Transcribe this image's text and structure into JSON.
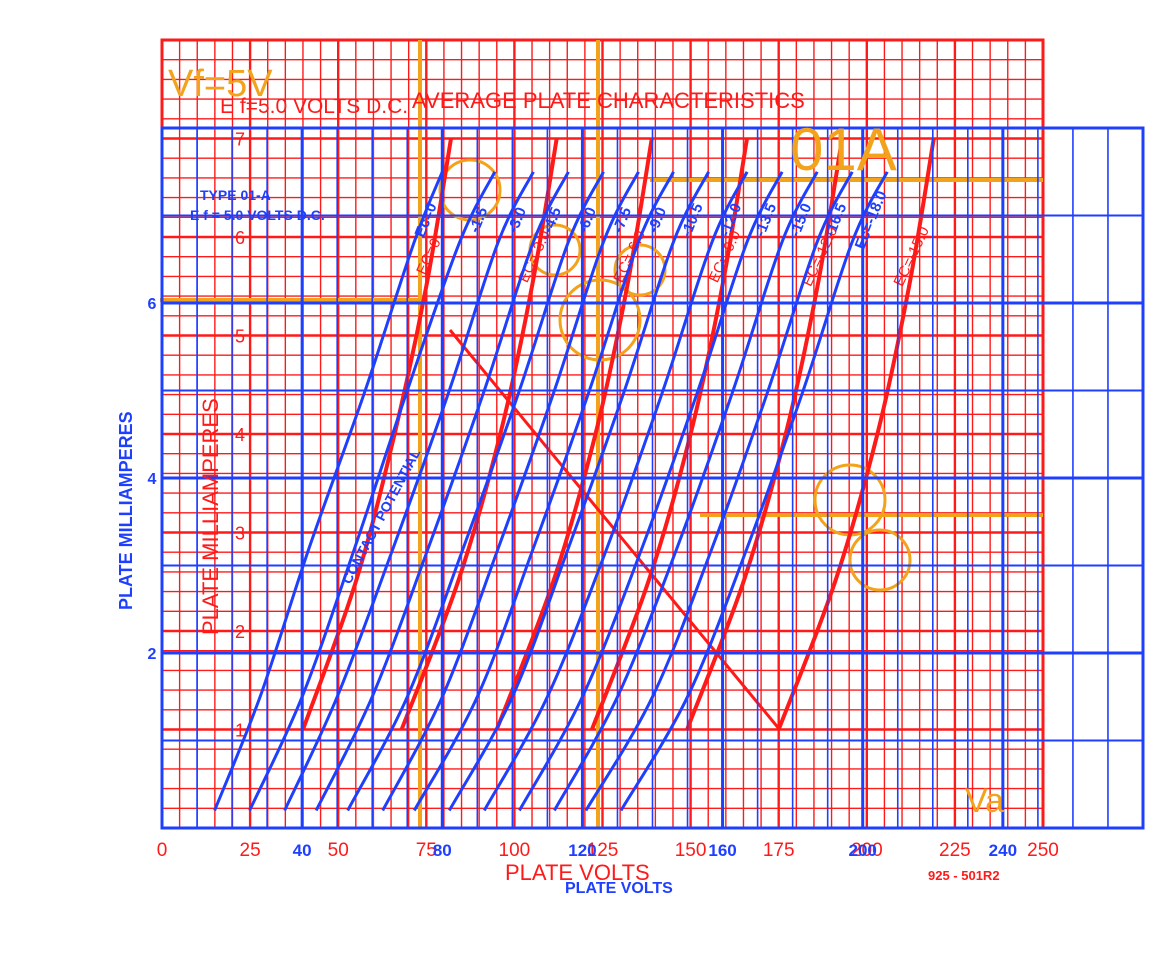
{
  "colors": {
    "background": "#ffffff",
    "red_overlay": "#ff1a1a",
    "blue_overlay": "#1f3fff",
    "orange_overlay": "#f2a31b"
  },
  "red_chart": {
    "title": "AVERAGE  PLATE  CHARACTERISTICS",
    "filament": "E f=5.0  VOLTS D.C.",
    "xlabel": "PLATE  VOLTS",
    "ylabel": "PLATE  MILLIAMPERES",
    "x_ticks": [
      "0",
      "25",
      "50",
      "75",
      "100",
      "125",
      "150",
      "175",
      "200",
      "225",
      "250"
    ],
    "y_ticks": [
      "1",
      "2",
      "3",
      "4",
      "5",
      "6",
      "7"
    ],
    "figure_number": "925 - 501R2"
  },
  "blue_chart": {
    "type_label": "TYPE 01-A",
    "filament": "E f = 5.0 VOLTS D.C.",
    "xlabel": "PLATE  VOLTS",
    "ylabel": "PLATE    MILLIAMPERES",
    "x_ticks": [
      "0",
      "40",
      "80",
      "120",
      "160",
      "200",
      "240"
    ],
    "y_ticks": [
      "2",
      "4",
      "6"
    ],
    "contact_potential": "CONTACT POTENTIAL"
  },
  "orange_marks": {
    "corner_top_left": "Vf=5V",
    "tube_type": "01A",
    "corner_bottom_right": "Va"
  },
  "chart_data": [
    {
      "type": "line",
      "name": "blue-plate-characteristics",
      "xlabel": "PLATE  VOLTS",
      "ylabel": "PLATE    MILLIAMPERES",
      "xlim": [
        0,
        280
      ],
      "ylim": [
        0,
        8
      ],
      "x_major_ticks": [
        0,
        40,
        80,
        120,
        160,
        200,
        240
      ],
      "y_major_ticks": [
        2,
        4,
        6
      ],
      "grid": true,
      "series": [
        {
          "name": "Ec=0",
          "x": [
            15,
            28,
            42,
            58,
            72,
            80
          ],
          "y": [
            0.2,
            1.5,
            3.2,
            5.0,
            6.7,
            7.5
          ]
        },
        {
          "name": "-1.5",
          "x": [
            25,
            40,
            55,
            70,
            85,
            95
          ],
          "y": [
            0.2,
            1.5,
            3.2,
            5.0,
            6.7,
            7.5
          ]
        },
        {
          "name": "-3.0",
          "x": [
            35,
            50,
            66,
            82,
            96,
            106
          ],
          "y": [
            0.2,
            1.5,
            3.2,
            5.0,
            6.7,
            7.5
          ]
        },
        {
          "name": "-4.5",
          "x": [
            44,
            60,
            76,
            92,
            106,
            116
          ],
          "y": [
            0.2,
            1.5,
            3.2,
            5.0,
            6.7,
            7.5
          ]
        },
        {
          "name": "-6.0",
          "x": [
            53,
            70,
            86,
            102,
            116,
            126
          ],
          "y": [
            0.2,
            1.5,
            3.2,
            5.0,
            6.7,
            7.5
          ]
        },
        {
          "name": "-7.5",
          "x": [
            63,
            80,
            96,
            112,
            126,
            136
          ],
          "y": [
            0.2,
            1.5,
            3.2,
            5.0,
            6.7,
            7.5
          ]
        },
        {
          "name": "-9.0",
          "x": [
            72,
            90,
            106,
            122,
            136,
            146
          ],
          "y": [
            0.2,
            1.5,
            3.2,
            5.0,
            6.7,
            7.5
          ]
        },
        {
          "name": "-10.5",
          "x": [
            82,
            100,
            116,
            132,
            146,
            156
          ],
          "y": [
            0.2,
            1.5,
            3.2,
            5.0,
            6.7,
            7.5
          ]
        },
        {
          "name": "-12.0",
          "x": [
            92,
            110,
            127,
            143,
            157,
            167
          ],
          "y": [
            0.2,
            1.5,
            3.2,
            5.0,
            6.7,
            7.5
          ]
        },
        {
          "name": "-13.5",
          "x": [
            102,
            120,
            137,
            153,
            167,
            177
          ],
          "y": [
            0.2,
            1.5,
            3.2,
            5.0,
            6.7,
            7.5
          ]
        },
        {
          "name": "-15.0",
          "x": [
            112,
            130,
            147,
            163,
            177,
            187
          ],
          "y": [
            0.2,
            1.5,
            3.2,
            5.0,
            6.7,
            7.5
          ]
        },
        {
          "name": "-16.5",
          "x": [
            121,
            140,
            157,
            173,
            187,
            197
          ],
          "y": [
            0.2,
            1.5,
            3.2,
            5.0,
            6.7,
            7.5
          ]
        },
        {
          "name": "Ec=-18.0",
          "x": [
            131,
            150,
            167,
            183,
            197,
            207
          ],
          "y": [
            0.2,
            1.5,
            3.2,
            5.0,
            6.7,
            7.5
          ]
        }
      ]
    },
    {
      "type": "line",
      "name": "red-plate-characteristics",
      "xlabel": "PLATE  VOLTS",
      "ylabel": "PLATE  MILLIAMPERES",
      "xlim": [
        0,
        250
      ],
      "ylim": [
        0,
        8
      ],
      "x_major_ticks": [
        0,
        25,
        50,
        75,
        100,
        125,
        150,
        175,
        200,
        225,
        250
      ],
      "y_major_ticks": [
        1,
        2,
        3,
        4,
        5,
        6,
        7
      ],
      "grid": true,
      "series": [
        {
          "name": "EC=0",
          "x": [
            40,
            55,
            66,
            75,
            82
          ],
          "y": [
            1.0,
            2.5,
            4.0,
            5.5,
            7.0
          ]
        },
        {
          "name": "EC=-3.0",
          "x": [
            68,
            84,
            96,
            105,
            112
          ],
          "y": [
            1.0,
            2.5,
            4.0,
            5.5,
            7.0
          ]
        },
        {
          "name": "EC=-6.0",
          "x": [
            95,
            111,
            123,
            132,
            139
          ],
          "y": [
            1.0,
            2.5,
            4.0,
            5.5,
            7.0
          ]
        },
        {
          "name": "EC=-9.0",
          "x": [
            122,
            138,
            150,
            159,
            166
          ],
          "y": [
            1.0,
            2.5,
            4.0,
            5.5,
            7.0
          ]
        },
        {
          "name": "EC=-12.0",
          "x": [
            149,
            165,
            177,
            186,
            193
          ],
          "y": [
            1.0,
            2.5,
            4.0,
            5.5,
            7.0
          ]
        },
        {
          "name": "EC=-15.0",
          "x": [
            175,
            191,
            203,
            212,
            219
          ],
          "y": [
            1.0,
            2.5,
            4.0,
            5.5,
            7.0
          ]
        }
      ]
    }
  ]
}
